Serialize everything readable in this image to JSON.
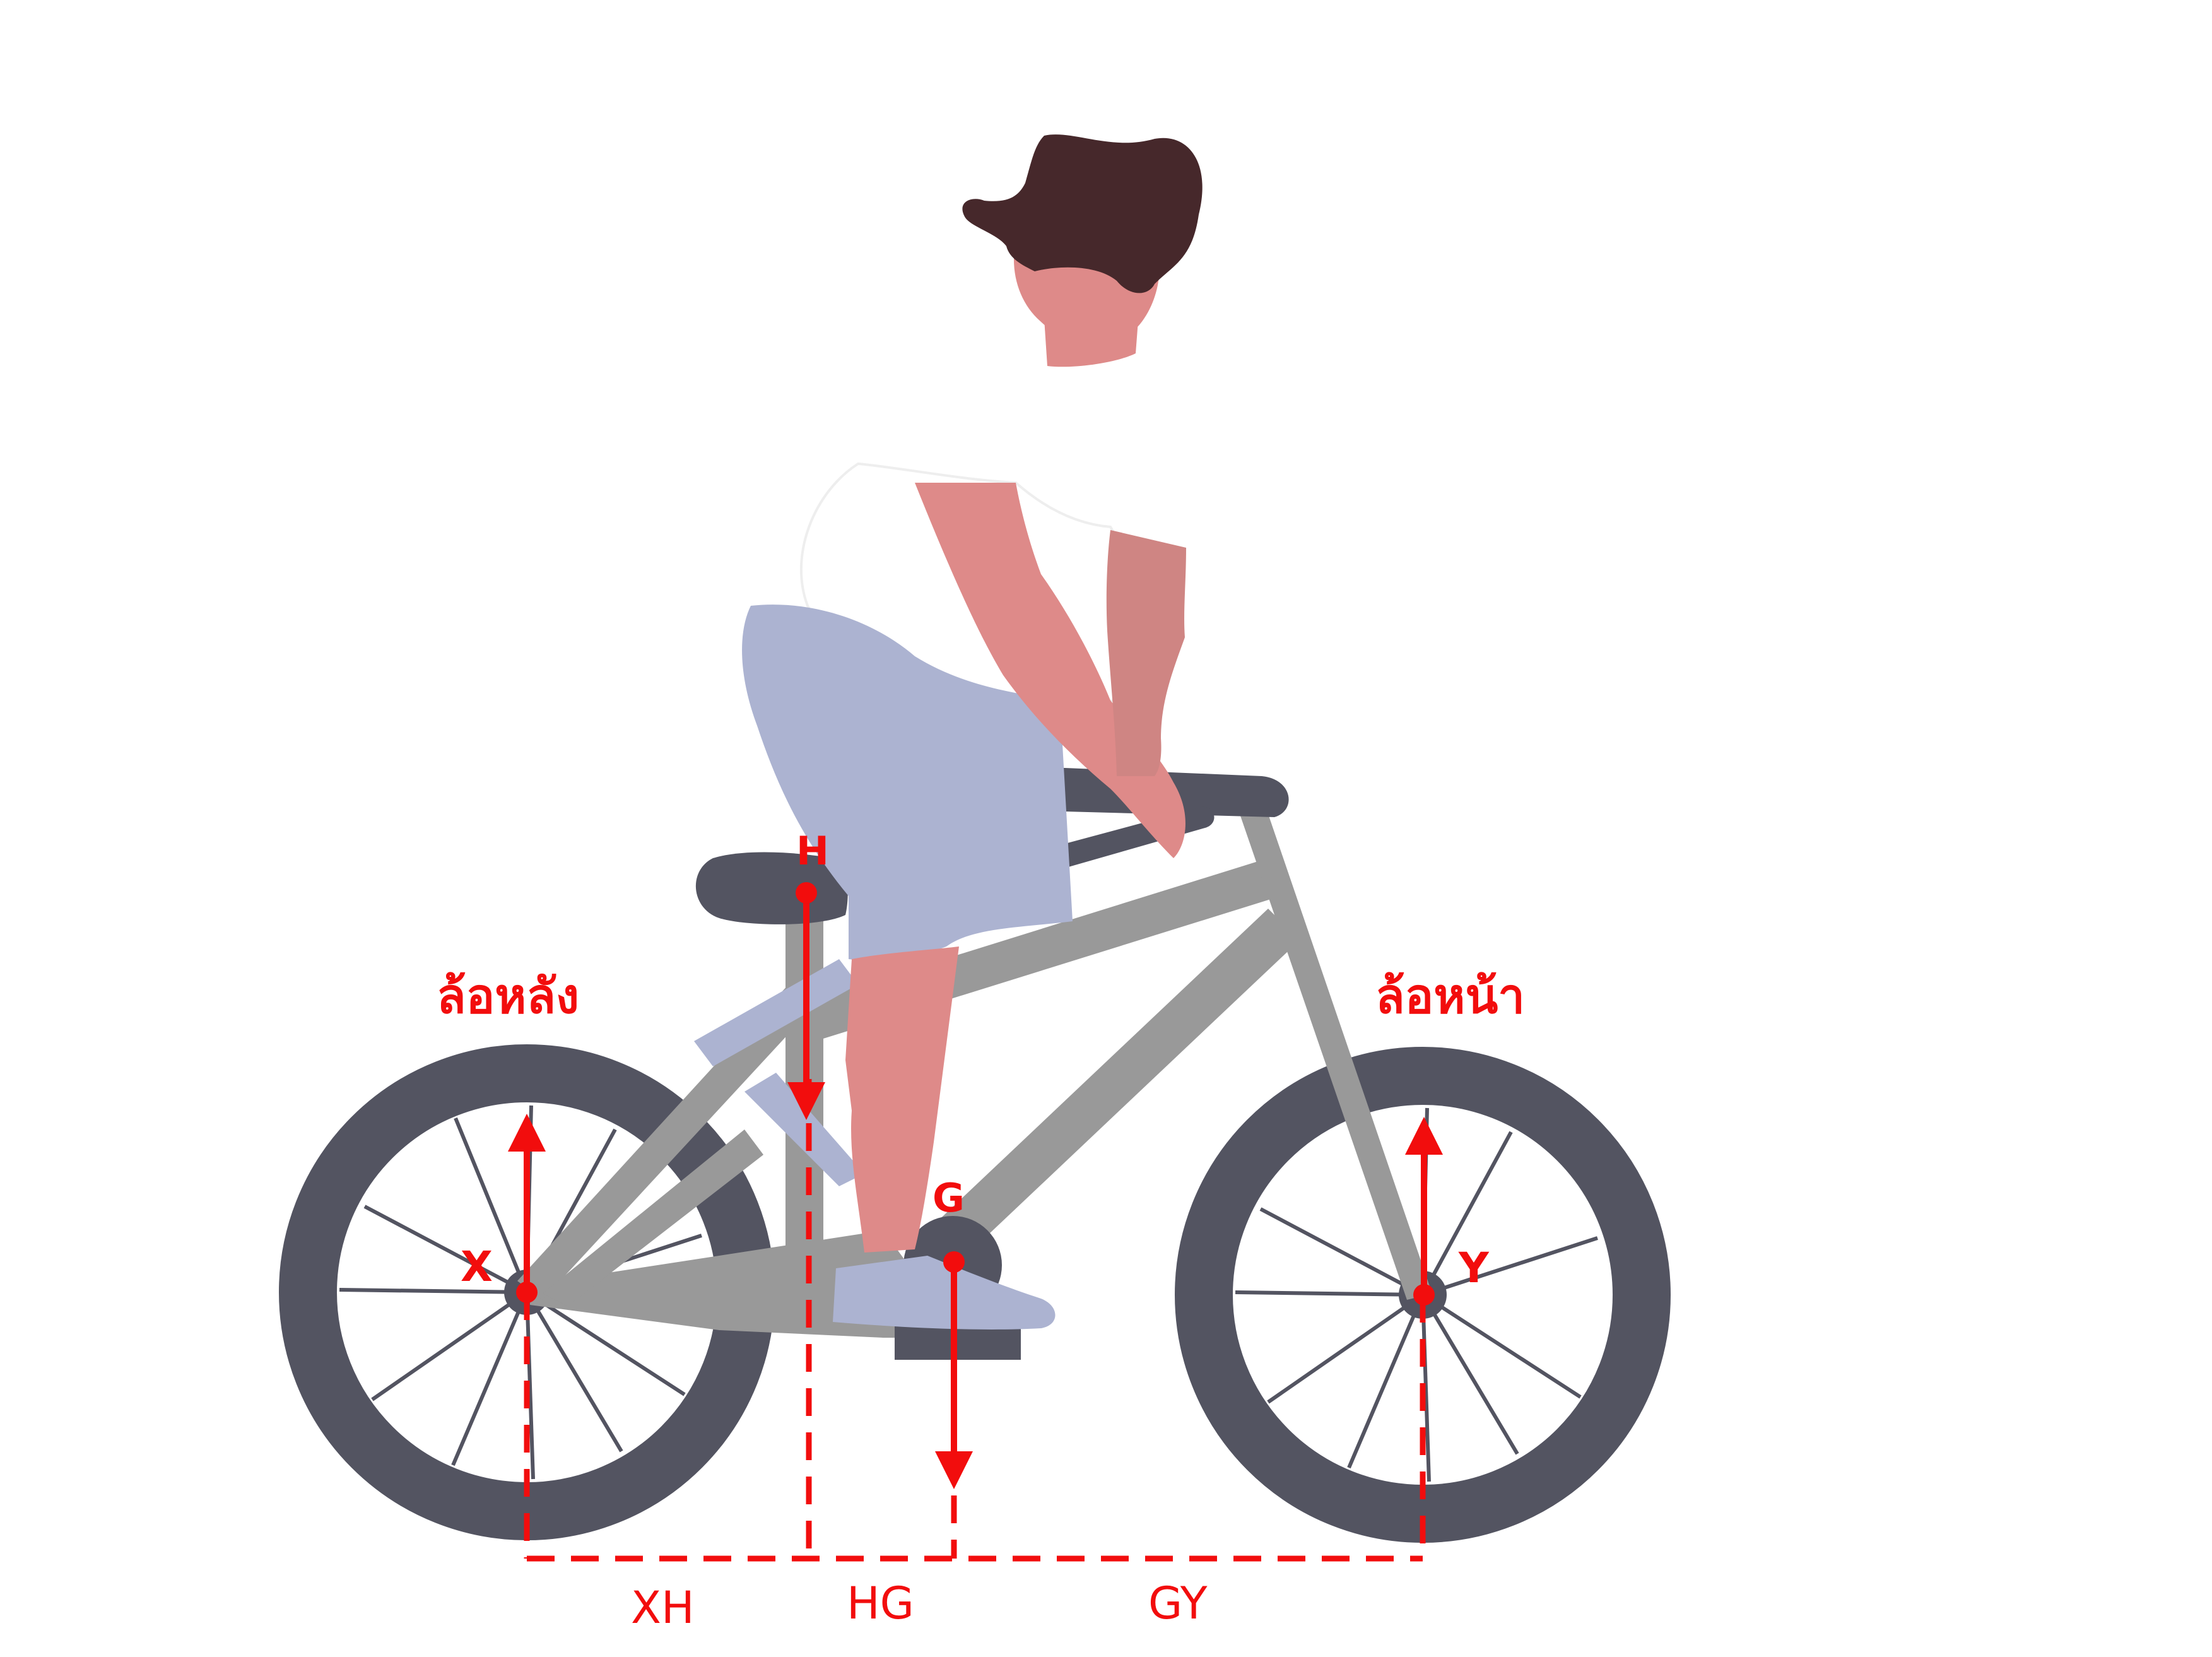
{
  "colors": {
    "annotation": "#f20d0d",
    "tire": "#535461",
    "frame": "#999999",
    "skin": "#de8a89",
    "skin_dark": "#cf8583",
    "hair": "#46282b",
    "pants": "#acb3d1",
    "seat": "#535461"
  },
  "labels": {
    "rear_wheel": "ล้อหลัง",
    "front_wheel": "ล้อหน้า",
    "point_x": "X",
    "point_h": "H",
    "point_g": "G",
    "point_y": "Y",
    "dist_xh": "XH",
    "dist_hg": "HG",
    "dist_gy": "GY"
  }
}
